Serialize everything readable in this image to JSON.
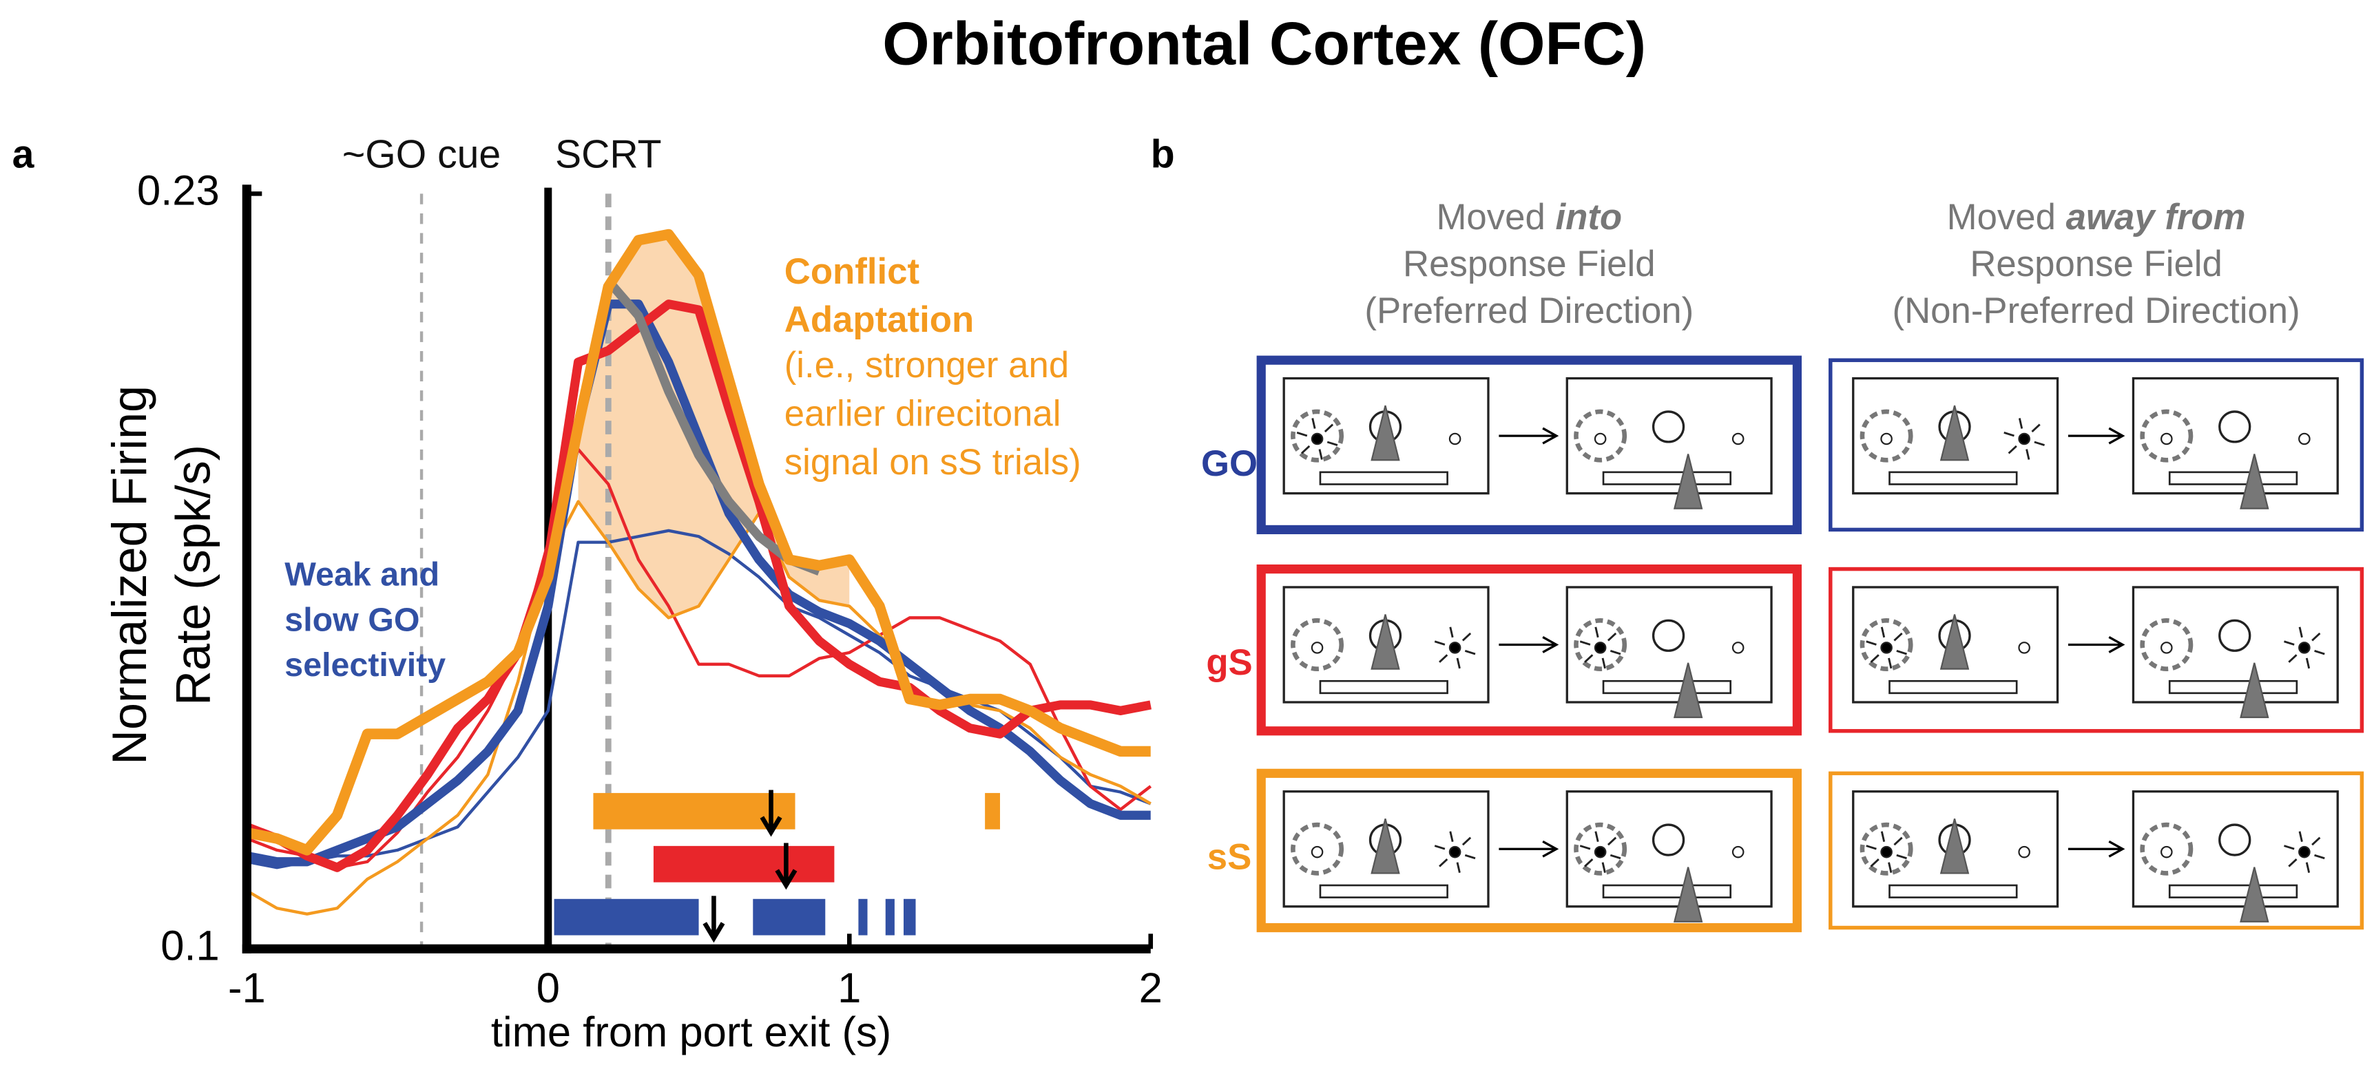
{
  "title": "Orbitofrontal Cortex (OFC)",
  "panel_a": "a",
  "panel_b": "b",
  "chart_data": {
    "type": "line",
    "xlabel": "time from port exit (s)",
    "ylabel": [
      "Normalized Firing",
      "Rate (spk/s)"
    ],
    "xlim": [
      -1,
      2
    ],
    "ylim": [
      0.1,
      0.23
    ],
    "xticks": [
      -1,
      0,
      1,
      2
    ],
    "yticks": [
      0.1,
      0.23
    ],
    "x": [
      -1,
      -0.9,
      -0.8,
      -0.7,
      -0.6,
      -0.5,
      -0.4,
      -0.3,
      -0.2,
      -0.1,
      0,
      0.1,
      0.2,
      0.3,
      0.4,
      0.5,
      0.6,
      0.7,
      0.8,
      0.9,
      1,
      1.1,
      1.2,
      1.3,
      1.4,
      1.5,
      1.6,
      1.7,
      1.8,
      1.9,
      2
    ],
    "series": [
      {
        "color": "#3150a4",
        "width": 6,
        "values": [
          0.116,
          0.115,
          0.115,
          0.117,
          0.119,
          0.121,
          0.125,
          0.129,
          0.134,
          0.141,
          0.159,
          0.19,
          0.211,
          0.211,
          0.201,
          0.188,
          0.175,
          0.167,
          0.161,
          0.158,
          0.156,
          0.153,
          0.149,
          0.145,
          0.141,
          0.138,
          0.134,
          0.129,
          0.125,
          0.123,
          0.123
        ]
      },
      {
        "color": "#3150a4",
        "width": 2,
        "values": [
          0.115,
          0.114,
          0.115,
          0.116,
          0.116,
          0.117,
          0.119,
          0.121,
          0.127,
          0.133,
          0.141,
          0.17,
          0.17,
          0.171,
          0.172,
          0.171,
          0.168,
          0.164,
          0.159,
          0.157,
          0.154,
          0.151,
          0.147,
          0.145,
          0.143,
          0.141,
          0.137,
          0.133,
          0.128,
          0.127,
          0.125
        ]
      },
      {
        "color": "#e8262b",
        "width": 6,
        "values": [
          0.121,
          0.119,
          0.116,
          0.114,
          0.117,
          0.123,
          0.13,
          0.138,
          0.143,
          0.151,
          0.167,
          0.201,
          0.203,
          0.207,
          0.211,
          0.21,
          0.193,
          0.177,
          0.159,
          0.153,
          0.149,
          0.146,
          0.145,
          0.141,
          0.138,
          0.137,
          0.141,
          0.142,
          0.142,
          0.141,
          0.142
        ]
      },
      {
        "color": "#e8262b",
        "width": 2,
        "values": [
          0.119,
          0.117,
          0.116,
          0.114,
          0.115,
          0.12,
          0.127,
          0.133,
          0.141,
          0.151,
          0.17,
          0.186,
          0.18,
          0.167,
          0.159,
          0.149,
          0.149,
          0.147,
          0.147,
          0.15,
          0.151,
          0.154,
          0.157,
          0.157,
          0.155,
          0.153,
          0.149,
          0.138,
          0.128,
          0.124,
          0.128
        ]
      },
      {
        "color": "#f49a1f",
        "width": 7,
        "values": [
          0.12,
          0.119,
          0.117,
          0.123,
          0.137,
          0.137,
          0.14,
          0.143,
          0.146,
          0.151,
          0.164,
          0.19,
          0.214,
          0.222,
          0.223,
          0.216,
          0.198,
          0.18,
          0.167,
          0.166,
          0.167,
          0.159,
          0.143,
          0.142,
          0.143,
          0.143,
          0.141,
          0.138,
          0.136,
          0.134,
          0.134
        ]
      },
      {
        "color": "#f49a1f",
        "width": 2,
        "values": [
          0.11,
          0.107,
          0.106,
          0.107,
          0.112,
          0.115,
          0.119,
          0.123,
          0.13,
          0.146,
          0.167,
          0.177,
          0.17,
          0.162,
          0.157,
          0.159,
          0.167,
          0.175,
          0.164,
          0.16,
          0.159,
          0.154,
          0.149,
          0.145,
          0.142,
          0.141,
          0.138,
          0.133,
          0.13,
          0.128,
          0.125
        ]
      },
      {
        "color": "#7f7f7f",
        "width": 6,
        "values": [
          null,
          null,
          null,
          null,
          null,
          null,
          null,
          null,
          null,
          null,
          null,
          null,
          0.215,
          0.209,
          0.196,
          0.185,
          0.177,
          0.171,
          0.167,
          0.165,
          null,
          null,
          null,
          null,
          null,
          null,
          null,
          null,
          null,
          null,
          null
        ]
      }
    ],
    "significance": [
      {
        "color": "#f49a1f",
        "intervals": [
          [
            0.15,
            0.82
          ],
          [
            1.45,
            1.5
          ]
        ],
        "arrow": 0.74
      },
      {
        "color": "#e8262b",
        "intervals": [
          [
            0.35,
            0.95
          ]
        ],
        "arrow": 0.79
      },
      {
        "color": "#3150a4",
        "intervals": [
          [
            0.02,
            0.5
          ],
          [
            0.68,
            0.92
          ],
          [
            1.03,
            1.06
          ],
          [
            1.12,
            1.15
          ],
          [
            1.18,
            1.22
          ]
        ],
        "arrow": 0.55
      }
    ],
    "vlines": [
      {
        "x": -0.42,
        "label": "~GO cue",
        "color": "#aaaaaa"
      },
      {
        "x": 0.2,
        "label": "SCRT",
        "color": "#aaaaaa"
      }
    ],
    "annotations": [
      {
        "lines": [
          "Conflict",
          "Adaptation"
        ],
        "color": "#f49a1f",
        "bold": true
      },
      {
        "lines": [
          "(i.e., stronger and",
          "earlier direcitonal",
          "signal on sS trials)"
        ],
        "color": "#f49a1f",
        "bold": false
      },
      {
        "lines": [
          "Weak and",
          "slow GO",
          "selectivity"
        ],
        "color": "#3150a4",
        "bold": true
      }
    ]
  },
  "diagram": {
    "columns": [
      {
        "prefix": "Moved ",
        "emph": "into",
        "lines": [
          "Response Field",
          "(Preferred Direction)"
        ]
      },
      {
        "prefix": "Moved ",
        "emph": "away from",
        "lines": [
          "Response Field",
          "(Non-Preferred Direction)"
        ]
      }
    ],
    "rows": [
      {
        "label": "GO",
        "color": "#2a3f9b"
      },
      {
        "label": "gS",
        "color": "#e8262b"
      },
      {
        "label": "sS",
        "color": "#f49a1f"
      }
    ]
  }
}
